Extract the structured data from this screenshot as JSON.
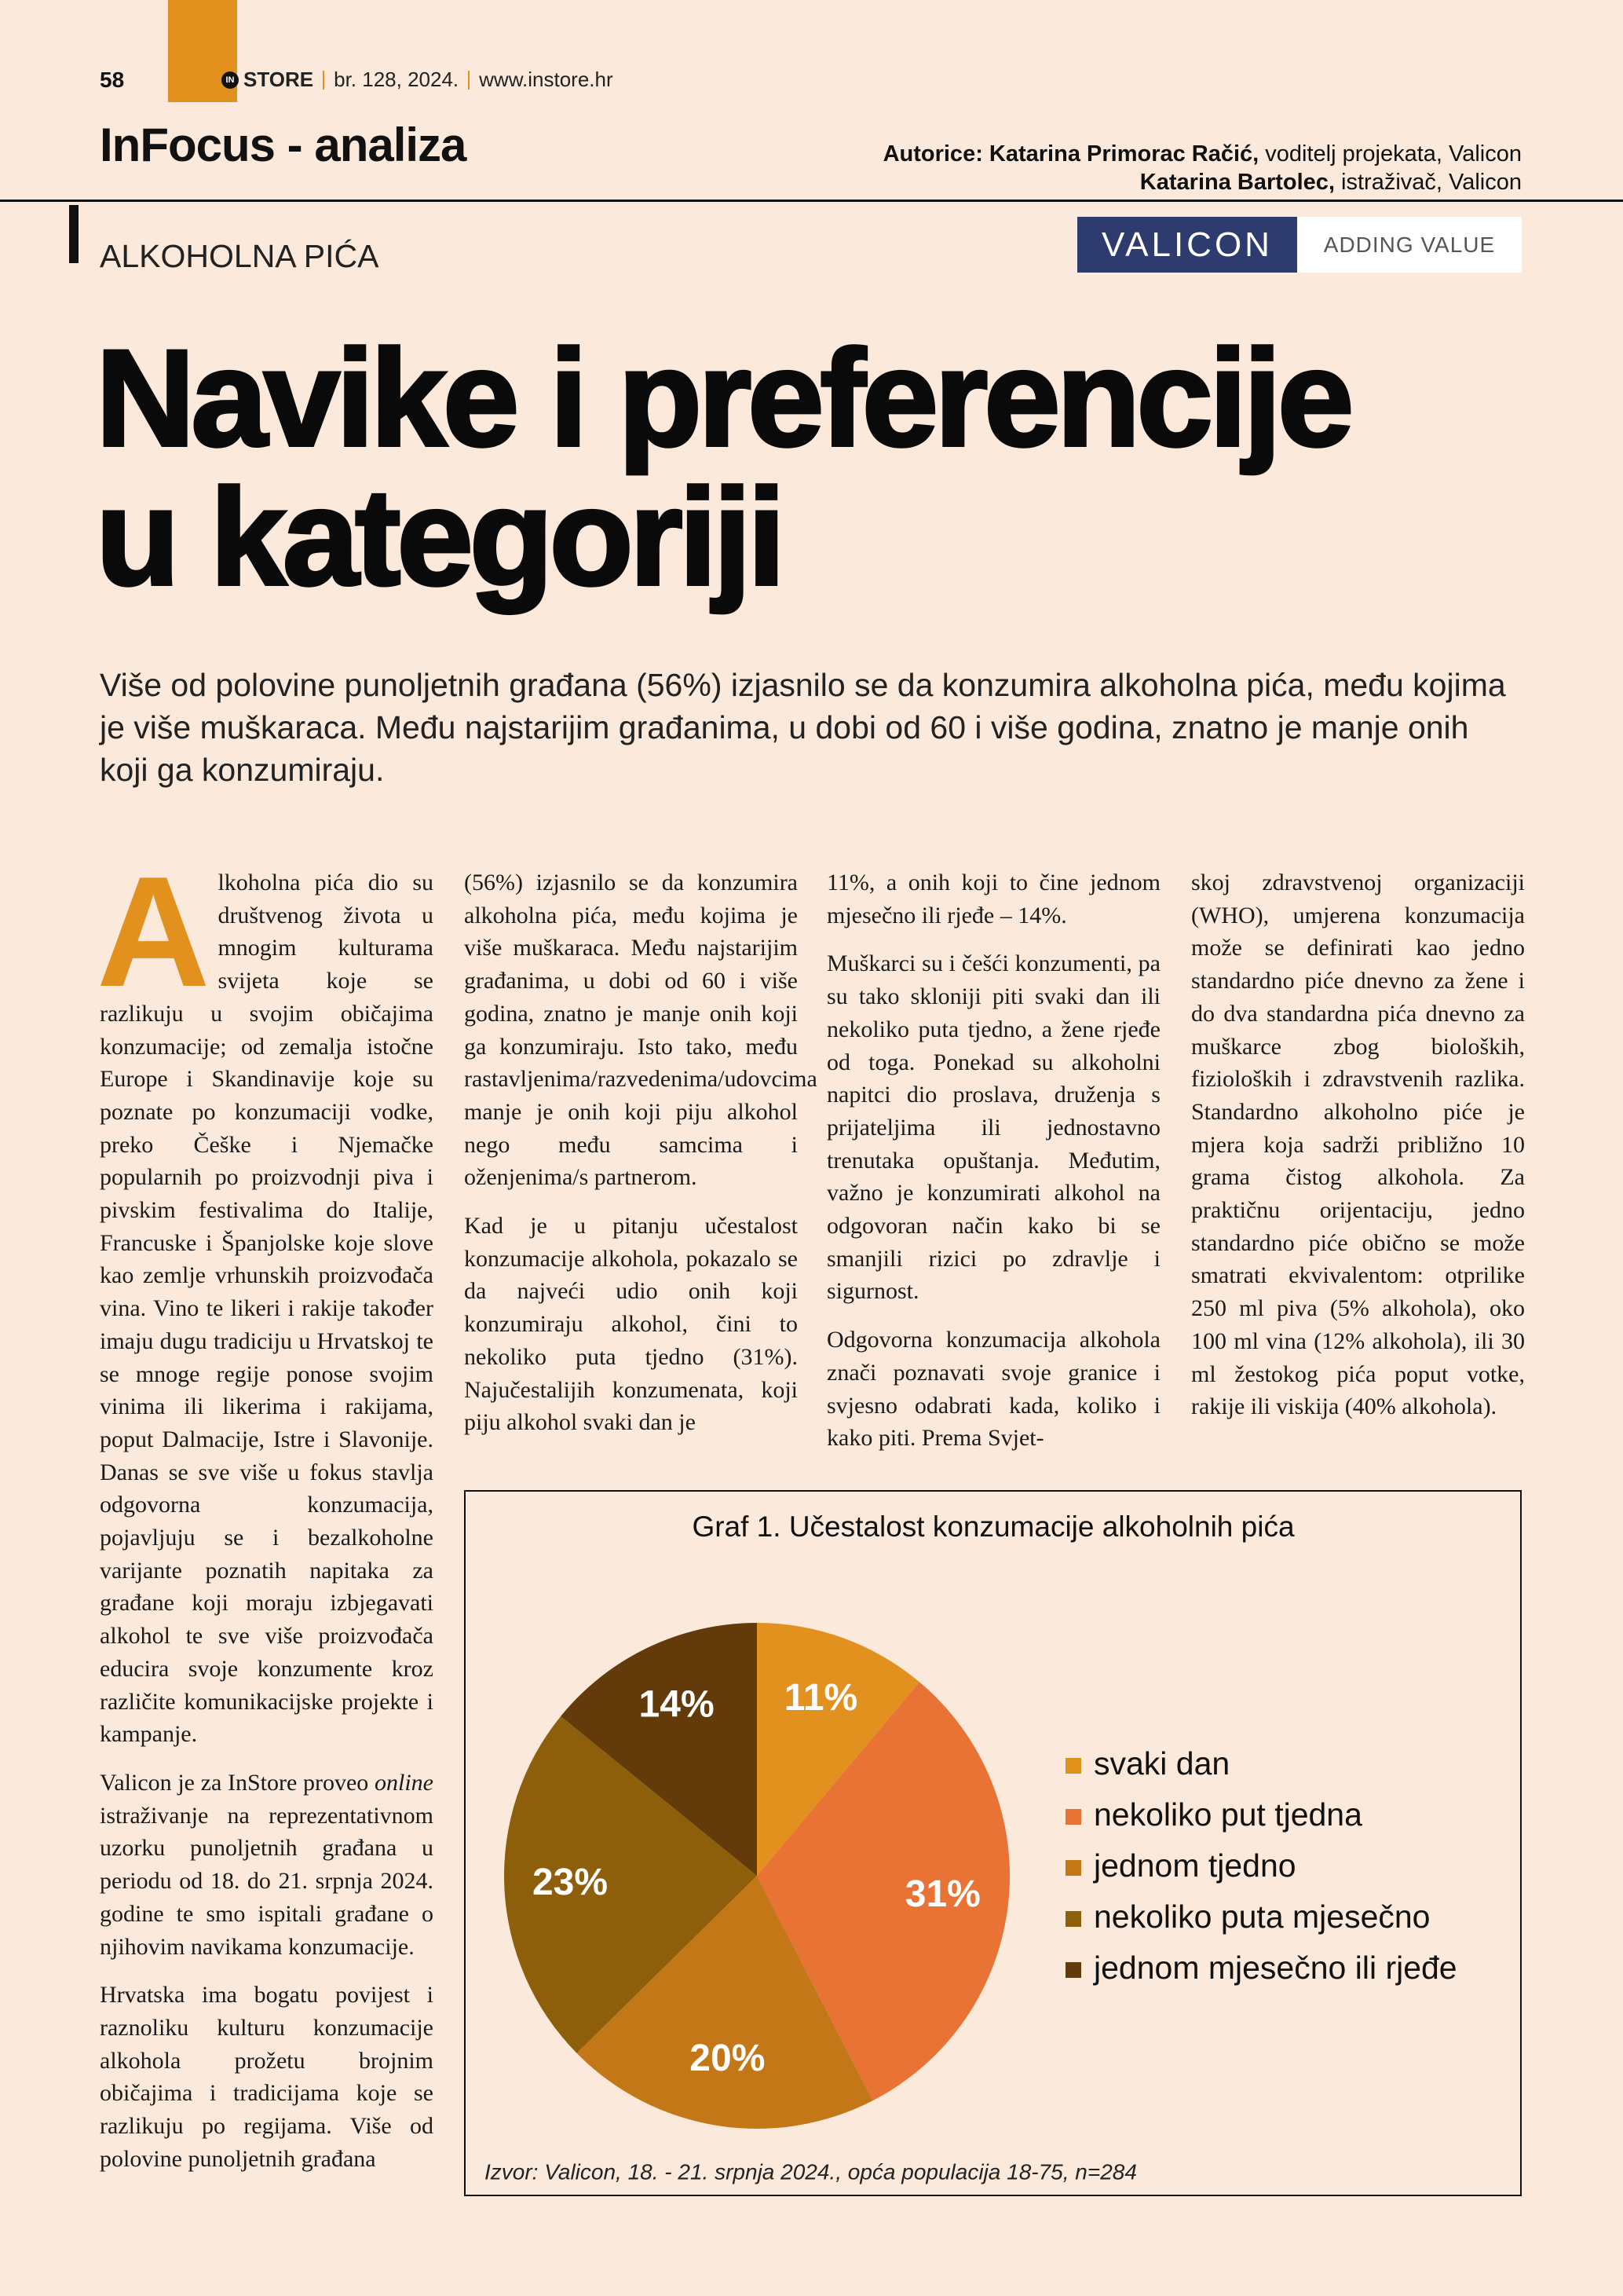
{
  "header": {
    "page_number": "58",
    "logo_in": "IN",
    "logo_store": "STORE",
    "issue": "br. 128, 2024.",
    "website": "www.instore.hr",
    "section": "InFocus - analiza",
    "author_1_name": "Autorice: Katarina Primorac Račić,",
    "author_1_role": " voditelj projekata, Valicon",
    "author_2_name": "Katarina Bartolec,",
    "author_2_role": " istraživač, Valicon",
    "kicker": "ALKOHOLNA PIĆA",
    "logo_name": "VALICON",
    "logo_slogan": "ADDING VALUE"
  },
  "article": {
    "title_line_1": "Navike i preferencije",
    "title_line_2": "u kategoriji",
    "lead": "Više od polovine punoljetnih građana (56%) izjasnilo se da konzumira alkoholna pića, među kojima je više muškaraca. Među najstarijim građanima, u dobi od 60 i više godina, znatno je manje onih koji ga konzumiraju.",
    "drop_cap": "A",
    "columns": [
      [
        "lkoholna pića dio su društvenog života u mnogim kulturama svijeta koje se razlikuju u svojim običajima konzumacije; od zemalja istočne Europe i Skandinavije koje su poznate po konzumaciji vodke, preko Češke i Njemačke popularnih po proizvodnji piva i pivskim festivalima do Italije, Francuske i Španjolske koje slove kao zemlje vrhunskih proizvođača vina. Vino te likeri i rakije također imaju dugu tradiciju u Hrvatskoj te se mnoge regije ponose svojim vinima ili likerima i rakijama, poput Dalmacije, Istre i Slavonije. Danas se sve više u fokus stavlja odgovorna konzumacija, pojavljuju se i bezalkoholne varijante poznatih napitaka za građane koji moraju izbjegavati alkohol te sve više proizvođača educira svoje konzumente kroz različite komunikacijske projekte i kampanje.",
        [
          "Valicon je za InStore proveo ",
          "online",
          " istraživanje na reprezentativnom uzorku punoljetnih građana u periodu od 18. do 21. srpnja 2024. godine te smo ispitali građane o njihovim navikama konzumacije."
        ],
        "Hrvatska ima bogatu povijest i raznoliku kulturu konzumacije alkohola prožetu brojnim običajima i tradicijama koje se razlikuju po regijama. Više od polovine punoljetnih građana"
      ],
      [
        "(56%) izjasnilo se da konzumira alkoholna pića, među kojima je više muškaraca. Među najstarijim građanima, u dobi od 60 i više godina, znatno je manje onih koji ga konzumiraju. Isto tako, među rastavljenima/razvedenima/udovcima manje je onih koji piju alkohol nego među samcima i oženjenima/s partnerom.",
        "Kad je u pitanju učestalost konzumacije alkohola, pokazalo se da najveći udio onih koji konzumiraju alkohol, čini to nekoliko puta tjedno (31%). Najučestalijih konzumenata, koji piju alkohol svaki dan je"
      ],
      [
        "11%, a onih koji to čine jednom mjesečno ili rjeđe – 14%.",
        "Muškarci su i češći konzumenti, pa su tako skloniji piti svaki dan ili nekoliko puta tjedno, a žene rjeđe od toga. Ponekad su alkoholni napitci dio proslava, druženja s prijateljima ili jednostavno trenutaka opuštanja. Međutim, važno je konzumirati alkohol na odgovoran način kako bi se smanjili rizici po zdravlje i sigurnost.",
        "Odgovorna konzumacija alkohola znači poznavati svoje granice i svjesno odabrati kada, koliko i kako piti. Prema Svjet-"
      ],
      [
        "skoj zdravstvenoj organizaciji (WHO), umjerena konzumacija može se definirati kao jedno standardno piće dnevno za žene i do dva standardna pića dnevno za muškarce zbog bioloških, fizioloških i zdravstvenih razlika. Standardno alkoholno piće je mjera koja sadrži približno 10 grama čistog alkohola. Za praktičnu orijentaciju, jedno standardno piće obično se može smatrati ekvivalentom: otprilike 250 ml piva (5% alkohola), oko 100 ml vina (12% alkohola), ili 30 ml žestokog pića poput votke, rakije ili viskija (40% alkohola)."
      ]
    ]
  },
  "chart_data": {
    "type": "pie",
    "title": "Graf 1. Učestalost konzumacije alkoholnih pića",
    "categories": [
      "svaki dan",
      "nekoliko put tjedna",
      "jednom tjedno",
      "nekoliko puta mjesečno",
      "jednom mjesečno ili rjeđe"
    ],
    "values": [
      11,
      31,
      20,
      23,
      14
    ],
    "value_labels": [
      "11%",
      "31%",
      "20%",
      "23%",
      "14%"
    ],
    "colors": [
      "#e2911f",
      "#e97235",
      "#c47717",
      "#8e5f0b",
      "#633a09"
    ],
    "source": "Izvor: Valicon, 18. - 21. srpnja 2024., opća populacija 18-75, n=284"
  }
}
